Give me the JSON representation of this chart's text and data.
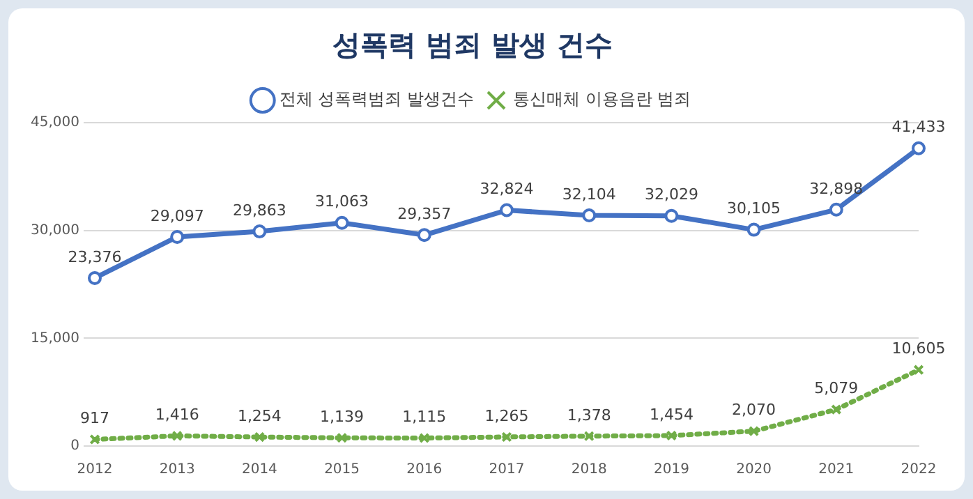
{
  "chart_data": {
    "type": "line",
    "title": "성폭력 범죄 발생 건수",
    "categories": [
      "2012",
      "2013",
      "2014",
      "2015",
      "2016",
      "2017",
      "2018",
      "2019",
      "2020",
      "2021",
      "2022"
    ],
    "series": [
      {
        "name": "전체 성폭력범죄 발생건수",
        "color": "#4472c4",
        "marker": "circle",
        "line_style": "solid",
        "values": [
          23376,
          29097,
          29863,
          31063,
          29357,
          32824,
          32104,
          32029,
          30105,
          32898,
          41433
        ],
        "value_labels": [
          "23,376",
          "29,097",
          "29,863",
          "31,063",
          "29,357",
          "32,824",
          "32,104",
          "32,029",
          "30,105",
          "32,898",
          "41,433"
        ]
      },
      {
        "name": "통신매체 이용음란 범죄",
        "color": "#70ad47",
        "marker": "cross",
        "line_style": "dotted",
        "values": [
          917,
          1416,
          1254,
          1139,
          1115,
          1265,
          1378,
          1454,
          2070,
          5079,
          10605
        ],
        "value_labels": [
          "917",
          "1,416",
          "1,254",
          "1,139",
          "1,115",
          "1,265",
          "1,378",
          "1,454",
          "2,070",
          "5,079",
          "10,605"
        ]
      }
    ],
    "ylim": [
      0,
      45000
    ],
    "yticks": [
      {
        "value": 0,
        "label": "0"
      },
      {
        "value": 15000,
        "label": "15,000"
      },
      {
        "value": 30000,
        "label": "30,000"
      },
      {
        "value": 45000,
        "label": "45,000"
      }
    ],
    "grid": "y",
    "legend": "top"
  }
}
